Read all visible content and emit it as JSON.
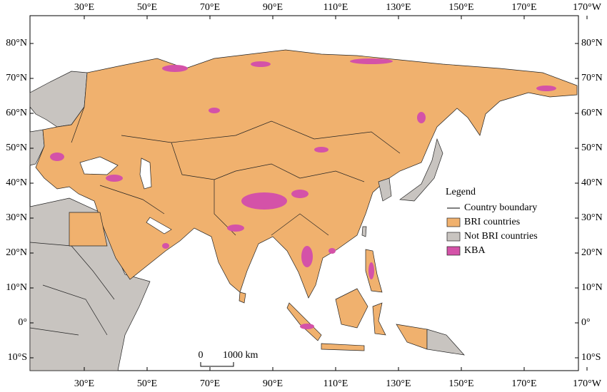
{
  "map": {
    "longitude_ticks": [
      {
        "value": 30,
        "label": "30°E"
      },
      {
        "value": 50,
        "label": "50°E"
      },
      {
        "value": 70,
        "label": "70°E"
      },
      {
        "value": 90,
        "label": "90°E"
      },
      {
        "value": 110,
        "label": "110°E"
      },
      {
        "value": 130,
        "label": "130°E"
      },
      {
        "value": 150,
        "label": "150°E"
      },
      {
        "value": 170,
        "label": "170°E"
      },
      {
        "value": -170,
        "label": "170°W"
      }
    ],
    "latitude_ticks": [
      {
        "value": 80,
        "label": "80°N"
      },
      {
        "value": 70,
        "label": "70°N"
      },
      {
        "value": 60,
        "label": "60°N"
      },
      {
        "value": 50,
        "label": "50°N"
      },
      {
        "value": 40,
        "label": "40°N"
      },
      {
        "value": 30,
        "label": "30°N"
      },
      {
        "value": 20,
        "label": "20°N"
      },
      {
        "value": 10,
        "label": "10°N"
      },
      {
        "value": 0,
        "label": "0°"
      },
      {
        "value": -10,
        "label": "10°S"
      }
    ],
    "legend": {
      "title": "Legend",
      "items": [
        {
          "label": "Country boundary",
          "kind": "line",
          "color": "#000000"
        },
        {
          "label": "BRI countries",
          "kind": "fill",
          "color": "#f0b16e"
        },
        {
          "label": "Not BRI countries",
          "kind": "fill",
          "color": "#c8c4c0"
        },
        {
          "label": "KBA",
          "kind": "fill",
          "color": "#d452a8"
        }
      ]
    },
    "scale_bar": {
      "start": "0",
      "end": "1000 km"
    }
  }
}
